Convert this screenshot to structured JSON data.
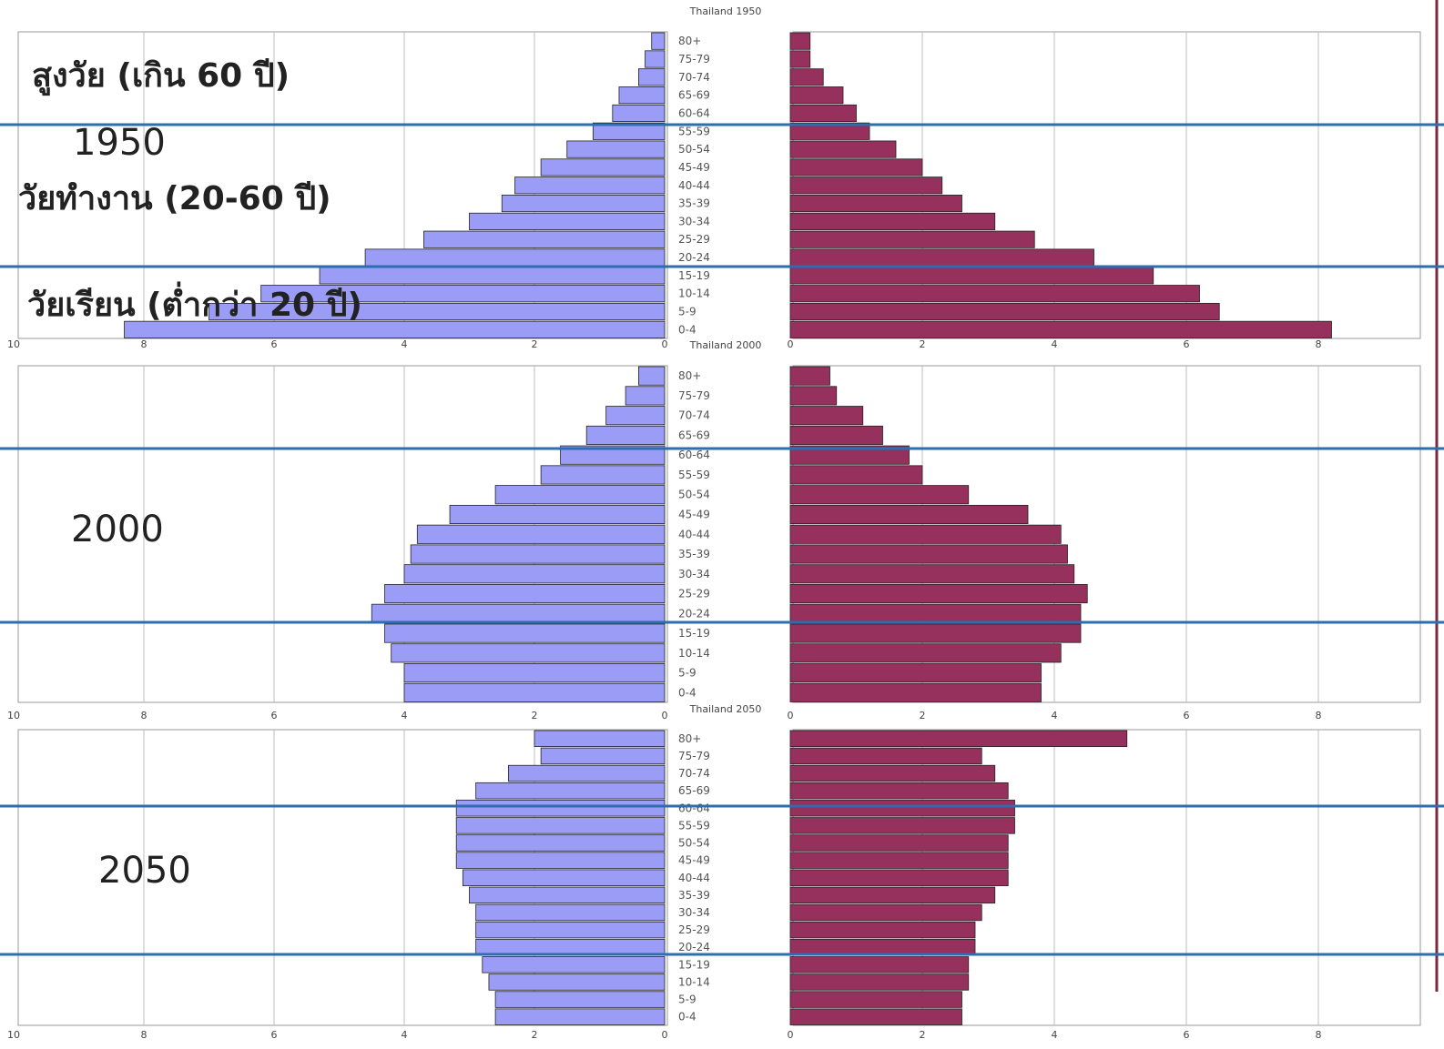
{
  "chart_data": {
    "type": "bar",
    "subtype": "population-pyramid",
    "colors": {
      "left": "#9a9cf6",
      "right": "#96305c",
      "bar_edge": "#222222",
      "band_line": "#2e6db0",
      "grid": "#bdbdbd"
    },
    "xlim_left": [
      10,
      0
    ],
    "xlim_right": [
      0,
      8
    ],
    "grid": true,
    "group_labels": [
      "สูงวัย (เกิน 60 ปี)",
      "วัยทำงาน (20-60 ปี)",
      "วัยเรียน (ต่ำกว่า 20 ปี)"
    ],
    "panels": [
      {
        "title": "Thailand 1950",
        "year_label": "1950",
        "left_ticks": [
          "10",
          "8",
          "6",
          "4",
          "2",
          "0"
        ],
        "right_ticks": [
          "0",
          "2",
          "4",
          "6",
          "8"
        ],
        "categories": [
          "80+",
          "75-79",
          "70-74",
          "65-69",
          "60-64",
          "55-59",
          "50-54",
          "45-49",
          "40-44",
          "35-39",
          "30-34",
          "25-29",
          "20-24",
          "15-19",
          "10-14",
          "5-9",
          "0-4"
        ],
        "series": [
          {
            "side": "left",
            "values": [
              0.2,
              0.3,
              0.4,
              0.7,
              0.8,
              1.1,
              1.5,
              1.9,
              2.3,
              2.5,
              3.0,
              3.7,
              4.6,
              5.3,
              6.2,
              7.0,
              8.3
            ]
          },
          {
            "side": "right",
            "values": [
              0.3,
              0.3,
              0.5,
              0.8,
              1.0,
              1.2,
              1.6,
              2.0,
              2.3,
              2.6,
              3.1,
              3.7,
              4.6,
              5.5,
              6.2,
              6.5,
              8.2
            ]
          }
        ]
      },
      {
        "title": "Thailand 2000",
        "year_label": "2000",
        "left_ticks": [
          "10",
          "8",
          "6",
          "4",
          "2",
          "0"
        ],
        "right_ticks": [
          "0",
          "2",
          "4",
          "6",
          "8"
        ],
        "categories": [
          "80+",
          "75-79",
          "70-74",
          "65-69",
          "60-64",
          "55-59",
          "50-54",
          "45-49",
          "40-44",
          "35-39",
          "30-34",
          "25-29",
          "20-24",
          "15-19",
          "10-14",
          "5-9",
          "0-4"
        ],
        "series": [
          {
            "side": "left",
            "values": [
              0.4,
              0.6,
              0.9,
              1.2,
              1.6,
              1.9,
              2.6,
              3.3,
              3.8,
              3.9,
              4.0,
              4.3,
              4.5,
              4.3,
              4.2,
              4.0,
              4.0
            ]
          },
          {
            "side": "right",
            "values": [
              0.6,
              0.7,
              1.1,
              1.4,
              1.8,
              2.0,
              2.7,
              3.6,
              4.1,
              4.2,
              4.3,
              4.5,
              4.4,
              4.4,
              4.1,
              3.8,
              3.8
            ]
          }
        ]
      },
      {
        "title": "Thailand 2050",
        "year_label": "2050",
        "left_ticks": [
          "10",
          "8",
          "6",
          "4",
          "2",
          "0"
        ],
        "right_ticks": [
          "0",
          "2",
          "4",
          "6",
          "8"
        ],
        "categories": [
          "80+",
          "75-79",
          "70-74",
          "65-69",
          "60-64",
          "55-59",
          "50-54",
          "45-49",
          "40-44",
          "35-39",
          "30-34",
          "25-29",
          "20-24",
          "15-19",
          "10-14",
          "5-9",
          "0-4"
        ],
        "series": [
          {
            "side": "left",
            "values": [
              2.0,
              1.9,
              2.4,
              2.9,
              3.2,
              3.2,
              3.2,
              3.2,
              3.1,
              3.0,
              2.9,
              2.9,
              2.9,
              2.8,
              2.7,
              2.6,
              2.6
            ]
          },
          {
            "side": "right",
            "values": [
              5.1,
              2.9,
              3.1,
              3.3,
              3.4,
              3.4,
              3.3,
              3.3,
              3.3,
              3.1,
              2.9,
              2.8,
              2.8,
              2.7,
              2.7,
              2.6,
              2.6
            ]
          }
        ]
      }
    ]
  }
}
